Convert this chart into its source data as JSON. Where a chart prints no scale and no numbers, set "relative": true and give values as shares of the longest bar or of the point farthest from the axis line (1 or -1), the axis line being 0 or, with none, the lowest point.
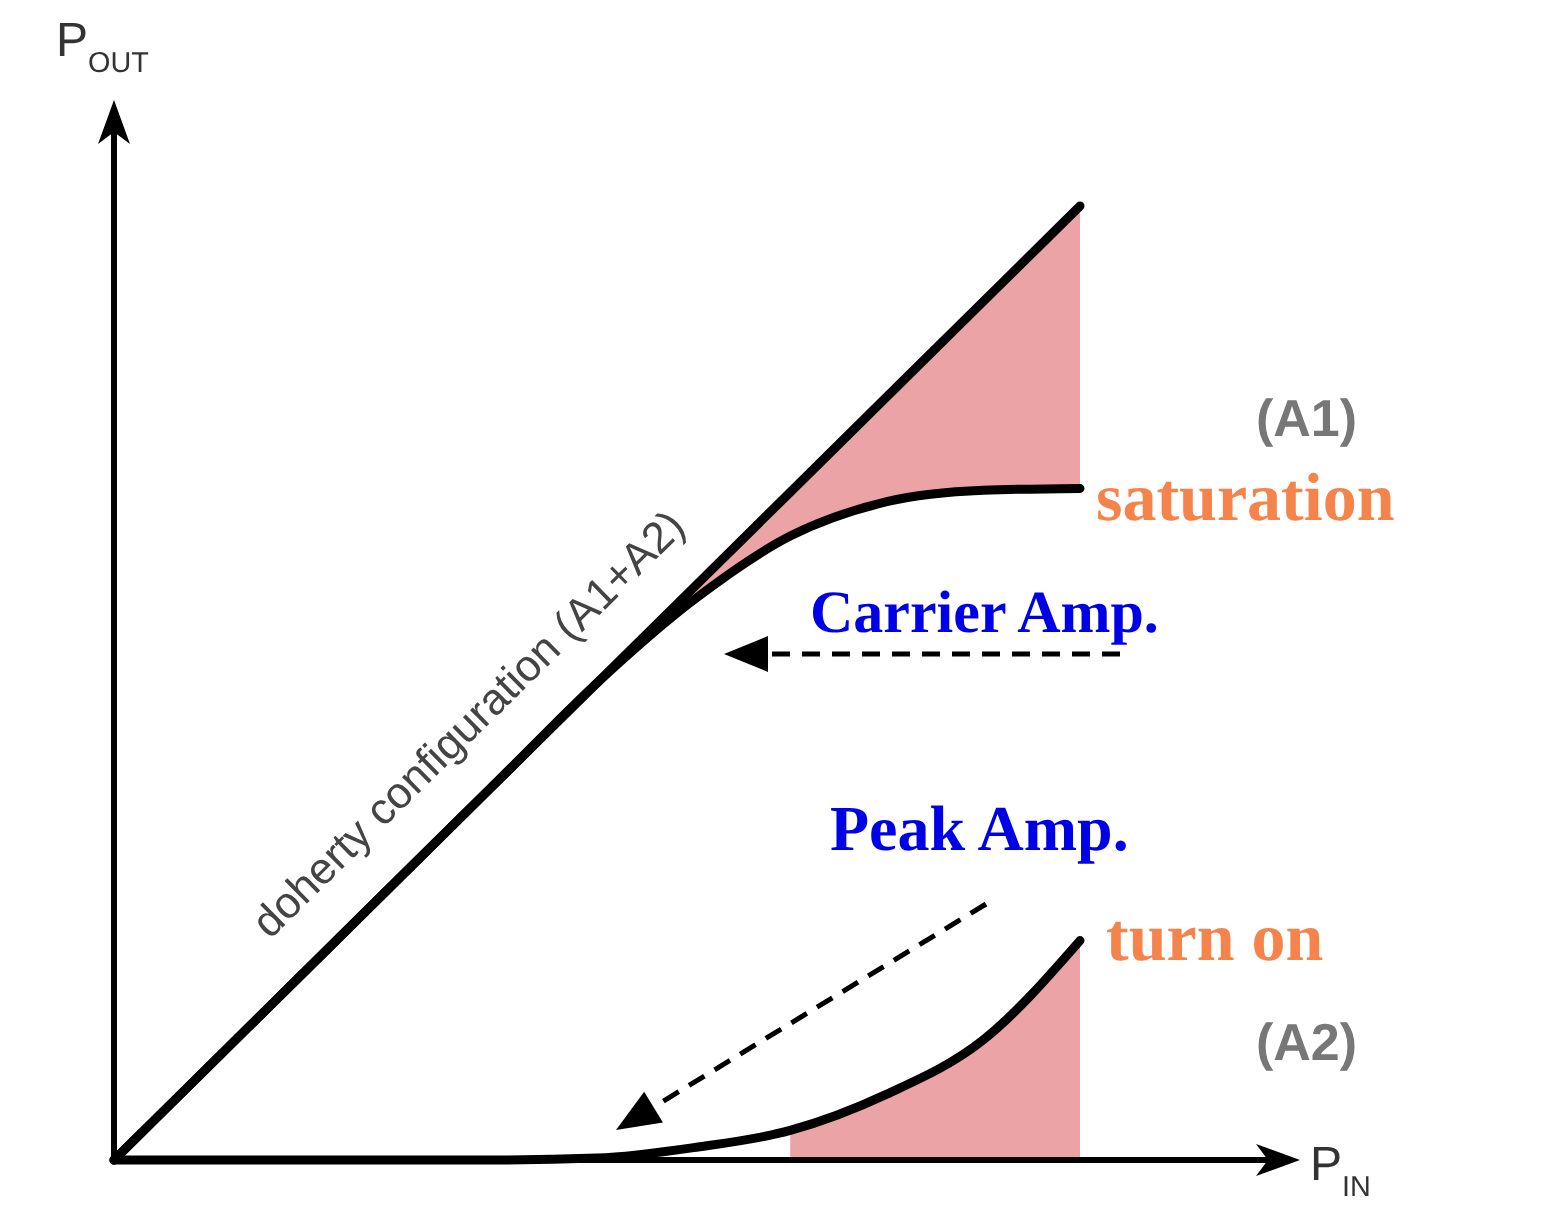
{
  "chart_data": {
    "type": "line",
    "relative": true,
    "xlabel": "P$_{IN}$",
    "ylabel": "P$_{OUT}$",
    "categories": [
      null,
      null,
      null,
      null,
      null,
      null,
      null,
      null,
      null,
      null,
      null
    ],
    "series": [
      {
        "name": "doherty configuration (A1+A2)",
        "color": "#000000",
        "values": [
          0,
          0.1,
          0.2,
          0.3,
          0.4,
          0.5,
          0.6,
          0.7,
          0.8,
          0.9,
          1
        ]
      },
      {
        "name": "Carrier Amp.",
        "color": "#000000",
        "values": [
          0,
          0.1,
          0.2,
          0.3,
          0.4,
          0.5,
          0.587,
          0.654,
          0.69,
          0.702,
          0.704
        ],
        "lower": [
          null,
          null,
          null,
          null,
          null,
          0.5,
          0.587,
          0.654,
          0.69,
          0.702,
          0.704
        ],
        "upper": [
          null,
          null,
          null,
          null,
          null,
          0.5,
          0.6,
          0.7,
          0.8,
          0.9,
          1
        ]
      },
      {
        "name": "Peak Amp.",
        "color": "#000000",
        "values": [
          0,
          0,
          0,
          0,
          0,
          0.002,
          0.013,
          0.031,
          0.069,
          0.126,
          0.23
        ]
      },
      {
        "type": "area",
        "color": "#eba3a6",
        "values": [
          null,
          null,
          null,
          null,
          null,
          null,
          null,
          0.031,
          0.069,
          0.126,
          0.23
        ]
      }
    ],
    "annotations": [
      "(A1)",
      "saturation",
      "turn on",
      "(A2)"
    ]
  }
}
